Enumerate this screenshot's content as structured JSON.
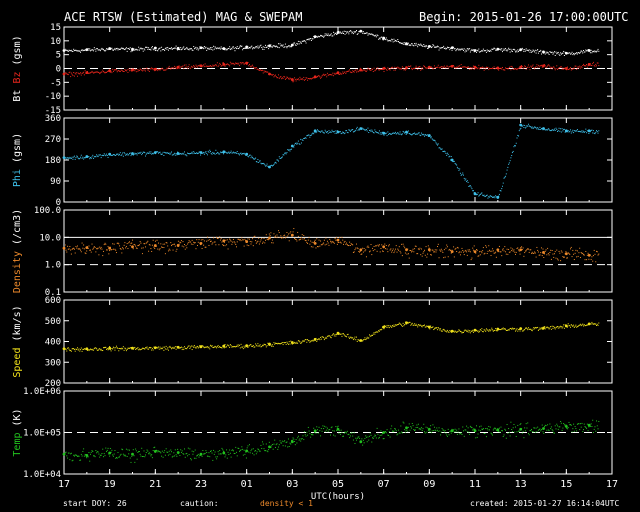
{
  "header": {
    "title": "ACE RTSW (Estimated) MAG & SWEPAM",
    "begin": "Begin: 2015-01-26 17:00:00UTC"
  },
  "footer": {
    "start_doy_label": "start DOY:",
    "start_doy_value": "26",
    "caution_label": "caution:",
    "caution_text": "density < 1",
    "created": "created: 2015-01-27 16:14:04UTC"
  },
  "colors": {
    "bt": "#ffffff",
    "bz": "#e8261c",
    "phi": "#3ec0ea",
    "density": "#ee8a2b",
    "speed": "#f1e21a",
    "temp": "#22c21e",
    "frame": "#ffffff",
    "background": "#000000"
  },
  "chart_data": [
    {
      "type": "scatter",
      "title": "",
      "xlabel": "UTC(hours)",
      "ylabel_parts": [
        {
          "text": "Bt",
          "color": "#ffffff"
        },
        {
          "text": "Bz",
          "color": "#e8261c"
        },
        {
          "text": "(gsm)",
          "color": "#ffffff"
        }
      ],
      "ylim": [
        -15,
        15
      ],
      "yticks": [
        "15",
        "10",
        "5",
        "0",
        "-5",
        "-10",
        "-15"
      ],
      "ytick_values": [
        15,
        10,
        5,
        0,
        -5,
        -10,
        -15
      ],
      "reference_line": 0,
      "x_hours_since_start": [
        0,
        1,
        2,
        3,
        4,
        5,
        6,
        7,
        8,
        9,
        10,
        11,
        12,
        13,
        14,
        15,
        16,
        17,
        18,
        19,
        20,
        21,
        22,
        23
      ],
      "series": [
        {
          "name": "Bt",
          "color": "#ffffff",
          "values": [
            6.5,
            6.8,
            7.2,
            7.0,
            7.4,
            7.3,
            7.5,
            7.2,
            7.8,
            8.2,
            8.5,
            11.5,
            13.0,
            13.5,
            11.0,
            9.0,
            8.0,
            7.5,
            6.5,
            7.0,
            6.8,
            6.0,
            5.5,
            6.5
          ]
        },
        {
          "name": "Bz",
          "color": "#e8261c",
          "values": [
            -2.0,
            -1.5,
            -0.8,
            -0.5,
            -0.3,
            0.5,
            1.0,
            1.5,
            2.0,
            -2.0,
            -4.0,
            -3.0,
            -1.5,
            -0.5,
            0.0,
            0.3,
            0.5,
            0.8,
            0.5,
            0.2,
            0.5,
            1.0,
            0.0,
            1.5
          ]
        }
      ]
    },
    {
      "type": "scatter",
      "title": "",
      "ylabel_parts": [
        {
          "text": "Phi",
          "color": "#3ec0ea"
        },
        {
          "text": "(gsm)",
          "color": "#ffffff"
        }
      ],
      "ylim": [
        0,
        360
      ],
      "yticks": [
        "360",
        "270",
        "180",
        "90",
        "0"
      ],
      "ytick_values": [
        360,
        270,
        180,
        90,
        0
      ],
      "x_hours_since_start": [
        0,
        1,
        2,
        3,
        4,
        5,
        6,
        7,
        8,
        9,
        10,
        11,
        12,
        13,
        14,
        15,
        16,
        17,
        18,
        19,
        20,
        21,
        22,
        23
      ],
      "series": [
        {
          "name": "Phi",
          "color": "#3ec0ea",
          "values": [
            190,
            195,
            205,
            208,
            212,
            208,
            212,
            215,
            205,
            150,
            240,
            305,
            300,
            315,
            295,
            300,
            285,
            180,
            35,
            20,
            330,
            315,
            305,
            305
          ]
        }
      ]
    },
    {
      "type": "scatter",
      "title": "",
      "ylabel_parts": [
        {
          "text": "Density",
          "color": "#ee8a2b"
        },
        {
          "text": "(/cm3)",
          "color": "#ffffff"
        }
      ],
      "yscale": "log",
      "ylim": [
        0.1,
        100
      ],
      "yticks": [
        "100.0",
        "10.0",
        "1.0",
        "0.1"
      ],
      "ytick_values": [
        100,
        10,
        1,
        0.1
      ],
      "reference_lines": [
        10,
        1
      ],
      "x_hours_since_start": [
        0,
        1,
        2,
        3,
        4,
        5,
        6,
        7,
        8,
        9,
        10,
        11,
        12,
        13,
        14,
        15,
        16,
        17,
        18,
        19,
        20,
        21,
        22,
        23
      ],
      "series": [
        {
          "name": "Density",
          "color": "#ee8a2b",
          "values": [
            4.0,
            4.2,
            4.0,
            4.5,
            5.0,
            5.0,
            6.0,
            7.5,
            7.0,
            9.5,
            12.0,
            6.0,
            8.0,
            3.5,
            4.5,
            3.5,
            3.5,
            3.0,
            3.0,
            3.5,
            3.5,
            2.8,
            2.5,
            2.2
          ]
        }
      ]
    },
    {
      "type": "scatter",
      "title": "",
      "ylabel_parts": [
        {
          "text": "Speed",
          "color": "#f1e21a"
        },
        {
          "text": "(km/s)",
          "color": "#ffffff"
        }
      ],
      "ylim": [
        200,
        600
      ],
      "yticks": [
        "600",
        "500",
        "400",
        "300",
        "200"
      ],
      "ytick_values": [
        600,
        500,
        400,
        300,
        200
      ],
      "x_hours_since_start": [
        0,
        1,
        2,
        3,
        4,
        5,
        6,
        7,
        8,
        9,
        10,
        11,
        12,
        13,
        14,
        15,
        16,
        17,
        18,
        19,
        20,
        21,
        22,
        23
      ],
      "series": [
        {
          "name": "Speed",
          "color": "#f1e21a",
          "values": [
            365,
            365,
            368,
            368,
            370,
            372,
            375,
            378,
            380,
            388,
            395,
            410,
            440,
            405,
            470,
            490,
            470,
            450,
            455,
            460,
            462,
            465,
            475,
            485
          ]
        }
      ]
    },
    {
      "type": "scatter",
      "title": "",
      "ylabel_parts": [
        {
          "text": "Temp",
          "color": "#22c21e"
        },
        {
          "text": "(K)",
          "color": "#ffffff"
        }
      ],
      "yscale": "log",
      "ylim": [
        10000,
        1000000
      ],
      "yticks": [
        "1.0E+06",
        "1.0E+05",
        "1.0E+04"
      ],
      "ytick_values": [
        1000000,
        100000,
        10000
      ],
      "reference_line": 100000,
      "x_hours_since_start": [
        0,
        1,
        2,
        3,
        4,
        5,
        6,
        7,
        8,
        9,
        10,
        11,
        12,
        13,
        14,
        15,
        16,
        17,
        18,
        19,
        20,
        21,
        22,
        23
      ],
      "series": [
        {
          "name": "Temp",
          "color": "#22c21e",
          "values": [
            30000,
            28000,
            32000,
            30000,
            35000,
            33000,
            30000,
            32000,
            36000,
            45000,
            60000,
            110000,
            120000,
            60000,
            100000,
            130000,
            120000,
            110000,
            110000,
            115000,
            120000,
            125000,
            140000,
            150000
          ]
        }
      ]
    }
  ],
  "x_axis": {
    "ticks": [
      "17",
      "19",
      "21",
      "23",
      "01",
      "03",
      "05",
      "07",
      "09",
      "11",
      "13",
      "15",
      "17"
    ],
    "tick_hours_since_start": [
      0,
      2,
      4,
      6,
      8,
      10,
      12,
      14,
      16,
      18,
      20,
      22,
      24
    ],
    "range_hours": [
      0,
      24
    ],
    "label": "UTC(hours)"
  }
}
